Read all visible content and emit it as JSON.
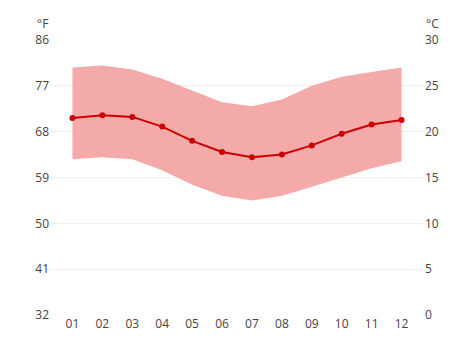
{
  "chart_data": {
    "type": "line",
    "categories": [
      "01",
      "02",
      "03",
      "04",
      "05",
      "06",
      "07",
      "08",
      "09",
      "10",
      "11",
      "12"
    ],
    "series": [
      {
        "type": "area",
        "color": "#f5aaaa",
        "values": [
          80.6,
          81.0,
          80.2,
          78.4,
          76.1,
          73.8,
          73.0,
          74.3,
          77.0,
          78.8,
          79.7,
          80.6
        ],
        "base": [
          62.6,
          63.0,
          62.6,
          60.4,
          57.6,
          55.4,
          54.5,
          55.4,
          57.2,
          59.0,
          60.8,
          62.2
        ]
      },
      {
        "type": "line",
        "color": "#cc0000",
        "marker": "circle",
        "values": [
          70.7,
          71.2,
          70.9,
          69.0,
          66.2,
          64.0,
          63.0,
          63.5,
          65.3,
          67.6,
          69.4,
          70.3
        ]
      }
    ],
    "ylabel": "°F",
    "y2label": "°C",
    "ylim": [
      32,
      86
    ],
    "yticks": [
      32,
      41,
      50,
      59,
      68,
      77,
      86
    ],
    "y2lim": [
      0,
      30
    ],
    "y2ticks": [
      0,
      5,
      10,
      15,
      20,
      25,
      30
    ],
    "grid": true
  }
}
